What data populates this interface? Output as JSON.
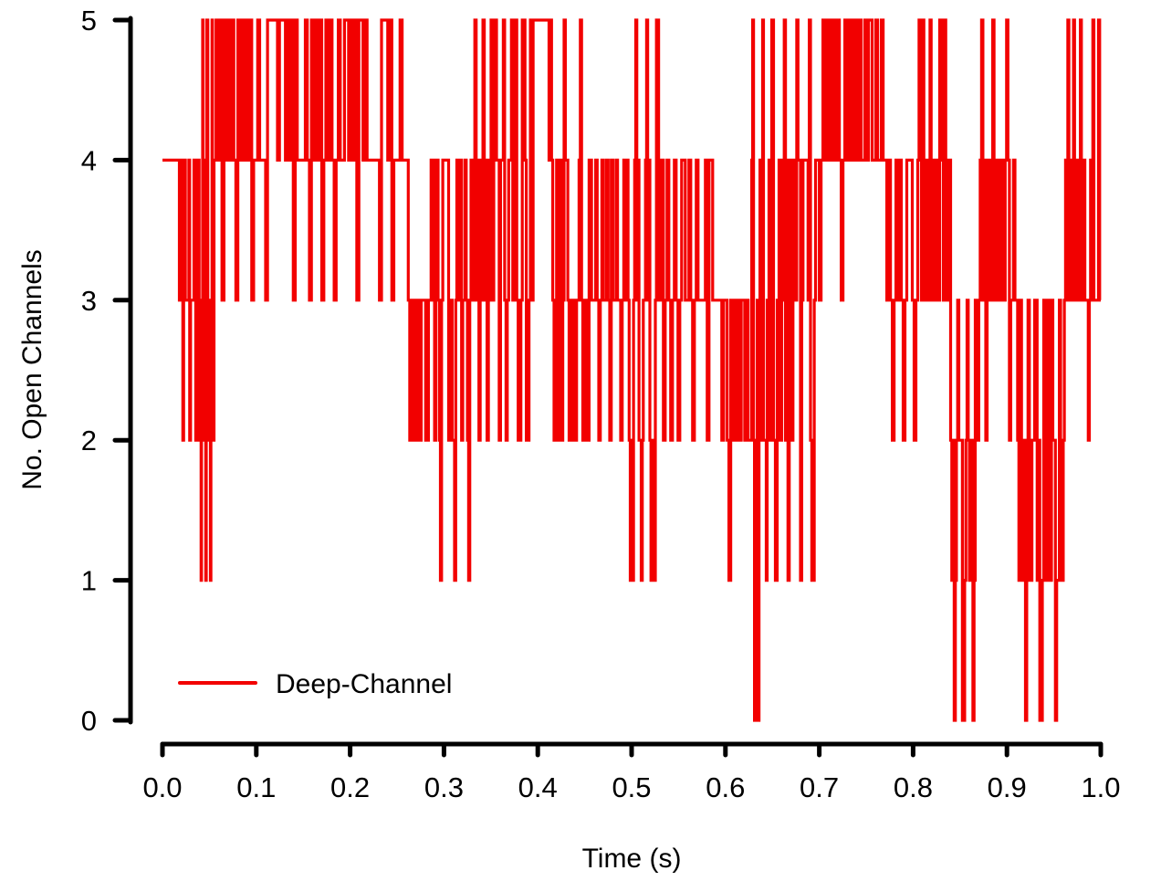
{
  "chart_data": {
    "type": "line",
    "title": "",
    "xlabel": "Time (s)",
    "ylabel": "No. Open Channels",
    "xlim": [
      0.0,
      1.0
    ],
    "ylim": [
      0,
      5
    ],
    "grid": false,
    "legend_position": "lower-left",
    "x_ticks": [
      "0.0",
      "0.1",
      "0.2",
      "0.3",
      "0.4",
      "0.5",
      "0.6",
      "0.7",
      "0.8",
      "0.9",
      "1.0"
    ],
    "y_ticks": [
      "0",
      "1",
      "2",
      "3",
      "4",
      "5"
    ],
    "series": [
      {
        "name": "Deep-Channel",
        "color": "#f20000",
        "style": "step",
        "description": "Idealised single-channel-count step trace (integer levels 0-5) sampled over 1 s; dense rapid transitions.",
        "segments": [
          {
            "t0": 0.0,
            "t1": 0.018,
            "levels": [
              4
            ]
          },
          {
            "t0": 0.018,
            "t1": 0.04,
            "levels": [
              3,
              4,
              3,
              4,
              2,
              3,
              4,
              3
            ]
          },
          {
            "t0": 0.04,
            "t1": 0.055,
            "levels": [
              2,
              3,
              1,
              2,
              3,
              5,
              3,
              2,
              4
            ]
          },
          {
            "t0": 0.055,
            "t1": 0.15,
            "levels": [
              4,
              5,
              4,
              5,
              3,
              5,
              4,
              5,
              4,
              5,
              4,
              3,
              5,
              4,
              5
            ]
          },
          {
            "t0": 0.15,
            "t1": 0.262,
            "levels": [
              4,
              5,
              4,
              3,
              5,
              4,
              5,
              4,
              5,
              3,
              4,
              5,
              4,
              5,
              4,
              3,
              4
            ]
          },
          {
            "t0": 0.262,
            "t1": 0.285,
            "levels": [
              3,
              2,
              3,
              2,
              3
            ]
          },
          {
            "t0": 0.285,
            "t1": 0.33,
            "levels": [
              3,
              4,
              3,
              4,
              2,
              3,
              4,
              3,
              2,
              1,
              3,
              4
            ]
          },
          {
            "t0": 0.33,
            "t1": 0.395,
            "levels": [
              3,
              4,
              5,
              3,
              4,
              2,
              3,
              4,
              5,
              3,
              4,
              2,
              3,
              4,
              5
            ]
          },
          {
            "t0": 0.395,
            "t1": 0.412,
            "levels": [
              5
            ]
          },
          {
            "t0": 0.412,
            "t1": 0.46,
            "levels": [
              4,
              5,
              4,
              3,
              2,
              3,
              4,
              2,
              3,
              4,
              2,
              3
            ]
          },
          {
            "t0": 0.46,
            "t1": 0.495,
            "levels": [
              3,
              4,
              3,
              2,
              3,
              4,
              3
            ]
          },
          {
            "t0": 0.495,
            "t1": 0.53,
            "levels": [
              4,
              3,
              2,
              1,
              2,
              1,
              3,
              4,
              5,
              3
            ]
          },
          {
            "t0": 0.53,
            "t1": 0.6,
            "levels": [
              3,
              4,
              2,
              3,
              4,
              3,
              2,
              3,
              4,
              3,
              2,
              3
            ]
          },
          {
            "t0": 0.6,
            "t1": 0.628,
            "levels": [
              3,
              2,
              1,
              3,
              2
            ]
          },
          {
            "t0": 0.628,
            "t1": 0.66,
            "levels": [
              4,
              5,
              2,
              0,
              2,
              1,
              3,
              0,
              2,
              4,
              2
            ]
          },
          {
            "t0": 0.66,
            "t1": 0.7,
            "levels": [
              4,
              3,
              5,
              2,
              4,
              1,
              3,
              4,
              2,
              4
            ]
          },
          {
            "t0": 0.7,
            "t1": 0.77,
            "levels": [
              3,
              4,
              5,
              4,
              5,
              4,
              5,
              4,
              5,
              4,
              5,
              4
            ]
          },
          {
            "t0": 0.77,
            "t1": 0.805,
            "levels": [
              4,
              3,
              4,
              3,
              2,
              3
            ]
          },
          {
            "t0": 0.805,
            "t1": 0.84,
            "levels": [
              4,
              5,
              4,
              3,
              5,
              4,
              3,
              4,
              3
            ]
          },
          {
            "t0": 0.84,
            "t1": 0.87,
            "levels": [
              2,
              1,
              2,
              0,
              1,
              2,
              3,
              2
            ]
          },
          {
            "t0": 0.87,
            "t1": 0.91,
            "levels": [
              3,
              4,
              5,
              3,
              4,
              2,
              3,
              4,
              3
            ]
          },
          {
            "t0": 0.91,
            "t1": 0.96,
            "levels": [
              3,
              2,
              1,
              3,
              2,
              1,
              2,
              0,
              1,
              3,
              2,
              1
            ]
          },
          {
            "t0": 0.96,
            "t1": 1.0,
            "levels": [
              2,
              3,
              4,
              3,
              5,
              4,
              3,
              4,
              3,
              5,
              3
            ]
          }
        ]
      }
    ]
  },
  "axes": {
    "x_title": "Time (s)",
    "y_title": "No. Open Channels"
  },
  "legend": {
    "label": "Deep-Channel",
    "color": "#f20000"
  }
}
